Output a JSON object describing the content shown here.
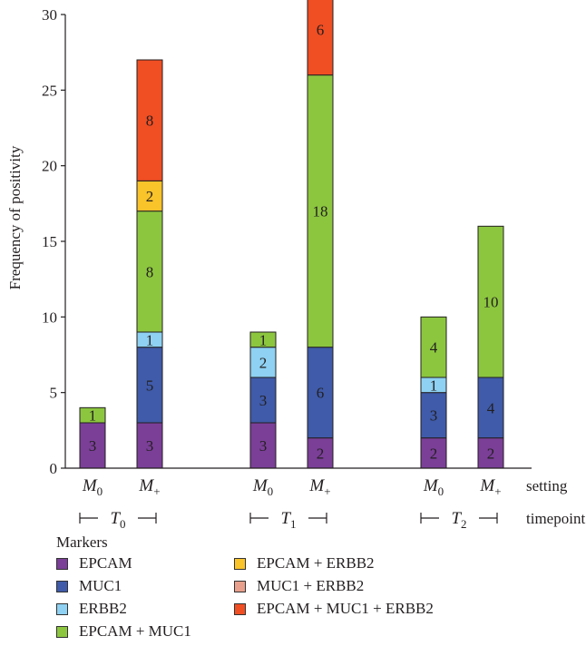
{
  "chart_data": {
    "type": "bar",
    "stacked": true,
    "ylabel": "Frequency of positivity",
    "ylim": [
      0,
      30
    ],
    "yticks": [
      0,
      5,
      10,
      15,
      20,
      25,
      30
    ],
    "categories": [
      "M0",
      "M+",
      "M0",
      "M+",
      "M0",
      "M+"
    ],
    "groups": [
      "T0",
      "T1",
      "T2"
    ],
    "row_labels": [
      "setting",
      "timepoint"
    ],
    "series": [
      {
        "name": "EPCAM",
        "color": "#7b3f98",
        "values": [
          3,
          3,
          3,
          2,
          2,
          2
        ]
      },
      {
        "name": "MUC1",
        "color": "#3f5ba9",
        "values": [
          0,
          5,
          3,
          6,
          3,
          4
        ]
      },
      {
        "name": "ERBB2",
        "color": "#8ed1f2",
        "values": [
          0,
          1,
          2,
          0,
          1,
          0
        ]
      },
      {
        "name": "EPCAM + MUC1",
        "color": "#8cc63f",
        "values": [
          1,
          8,
          1,
          18,
          4,
          10
        ]
      },
      {
        "name": "EPCAM + ERBB2",
        "color": "#f9c32a",
        "values": [
          0,
          2,
          0,
          0,
          0,
          0
        ]
      },
      {
        "name": "MUC1 + ERBB2",
        "color": "#e8a08c",
        "values": [
          0,
          0,
          0,
          0,
          0,
          0
        ]
      },
      {
        "name": "EPCAM + MUC1 + ERBB2",
        "color": "#f04e23",
        "values": [
          0,
          8,
          0,
          6,
          0,
          0
        ]
      }
    ],
    "legend_title": "Markers",
    "legend_position": "bottom-left",
    "grid": false
  }
}
